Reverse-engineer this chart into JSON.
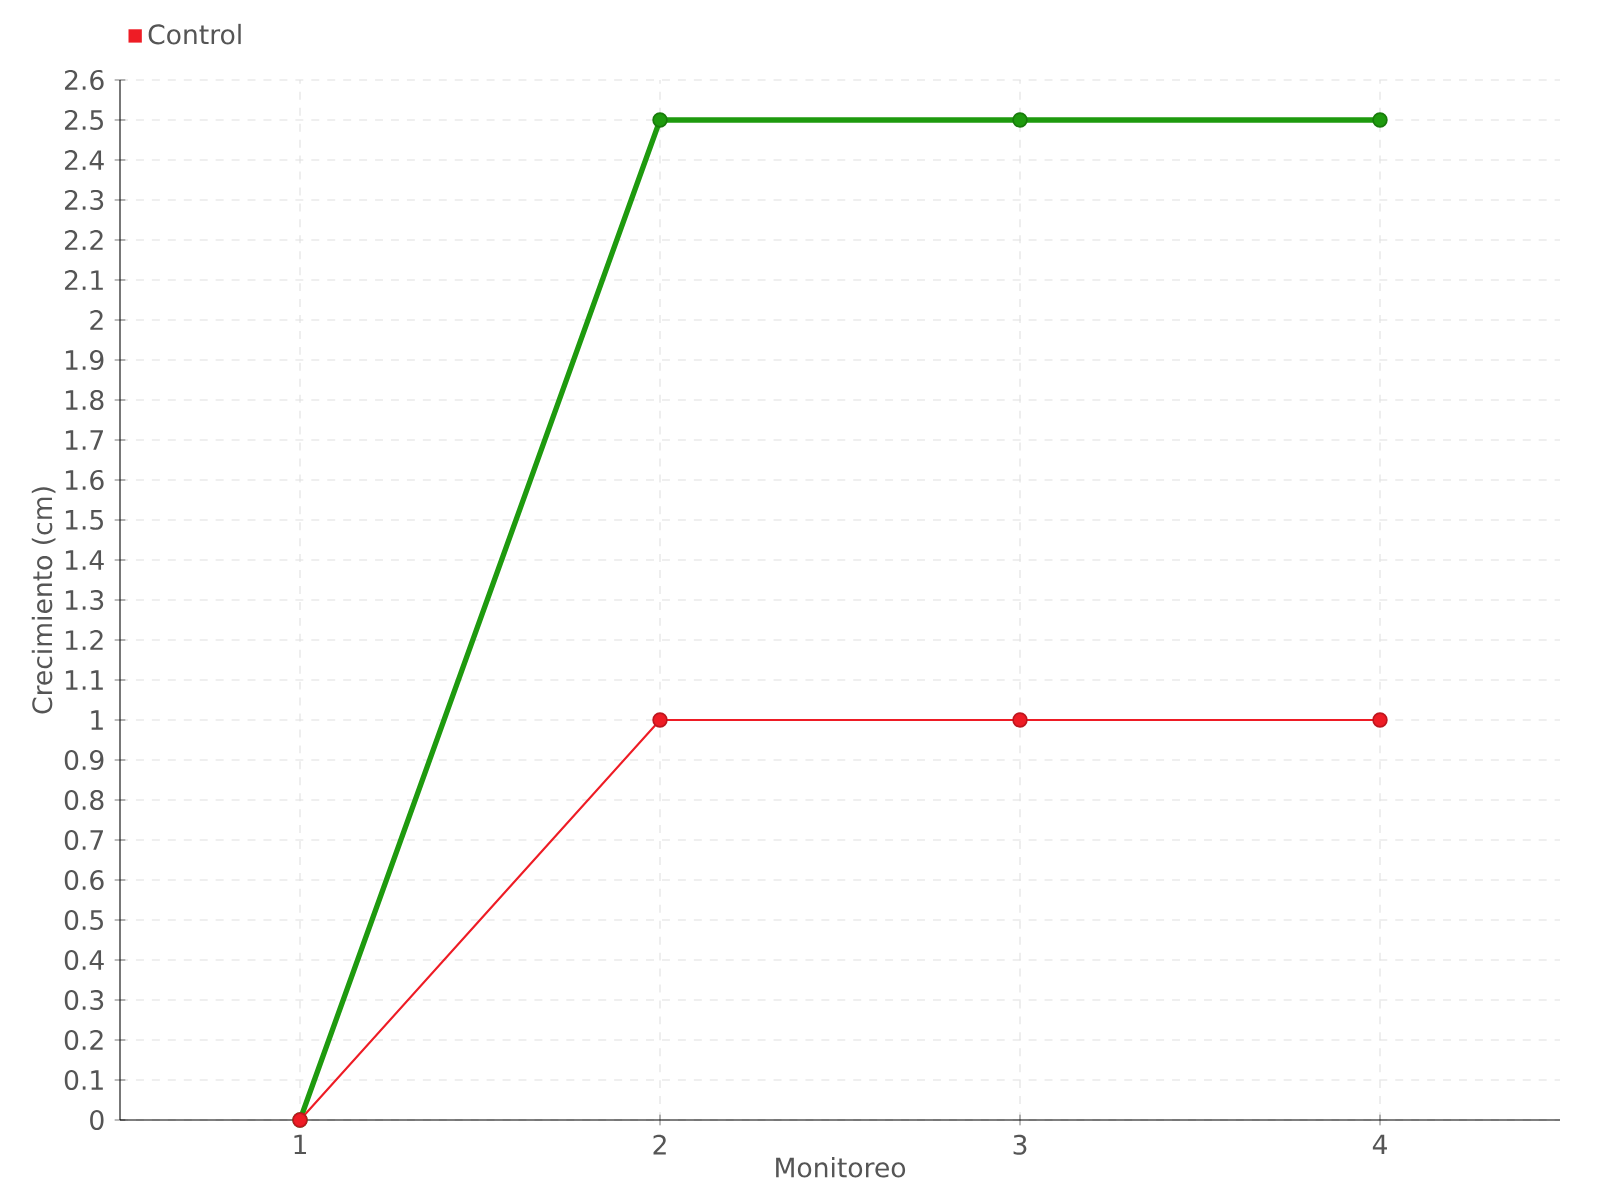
{
  "chart_data": {
    "type": "line",
    "xlabel": "Monitoreo",
    "ylabel": "Crecimiento (cm)",
    "categories": [
      "1",
      "2",
      "3",
      "4"
    ],
    "series": [
      {
        "color": "#1e9a0e",
        "values": [
          0,
          2.5,
          2.5,
          2.5
        ]
      },
      {
        "name": "Control",
        "color": "#ee1c25",
        "values": [
          0,
          1,
          1,
          1
        ]
      }
    ],
    "ylim": [
      0,
      2.6
    ],
    "yticks": [
      0,
      0.1,
      0.2,
      0.3,
      0.4,
      0.5,
      0.6,
      0.7,
      0.8,
      0.9,
      1,
      1.1,
      1.2,
      1.3,
      1.4,
      1.5,
      1.6,
      1.7,
      1.8,
      1.9,
      2,
      2.1,
      2.2,
      2.3,
      2.4,
      2.5,
      2.6
    ],
    "grid": true,
    "legend": "top left",
    "marker": "circle",
    "line_style": "solid"
  }
}
